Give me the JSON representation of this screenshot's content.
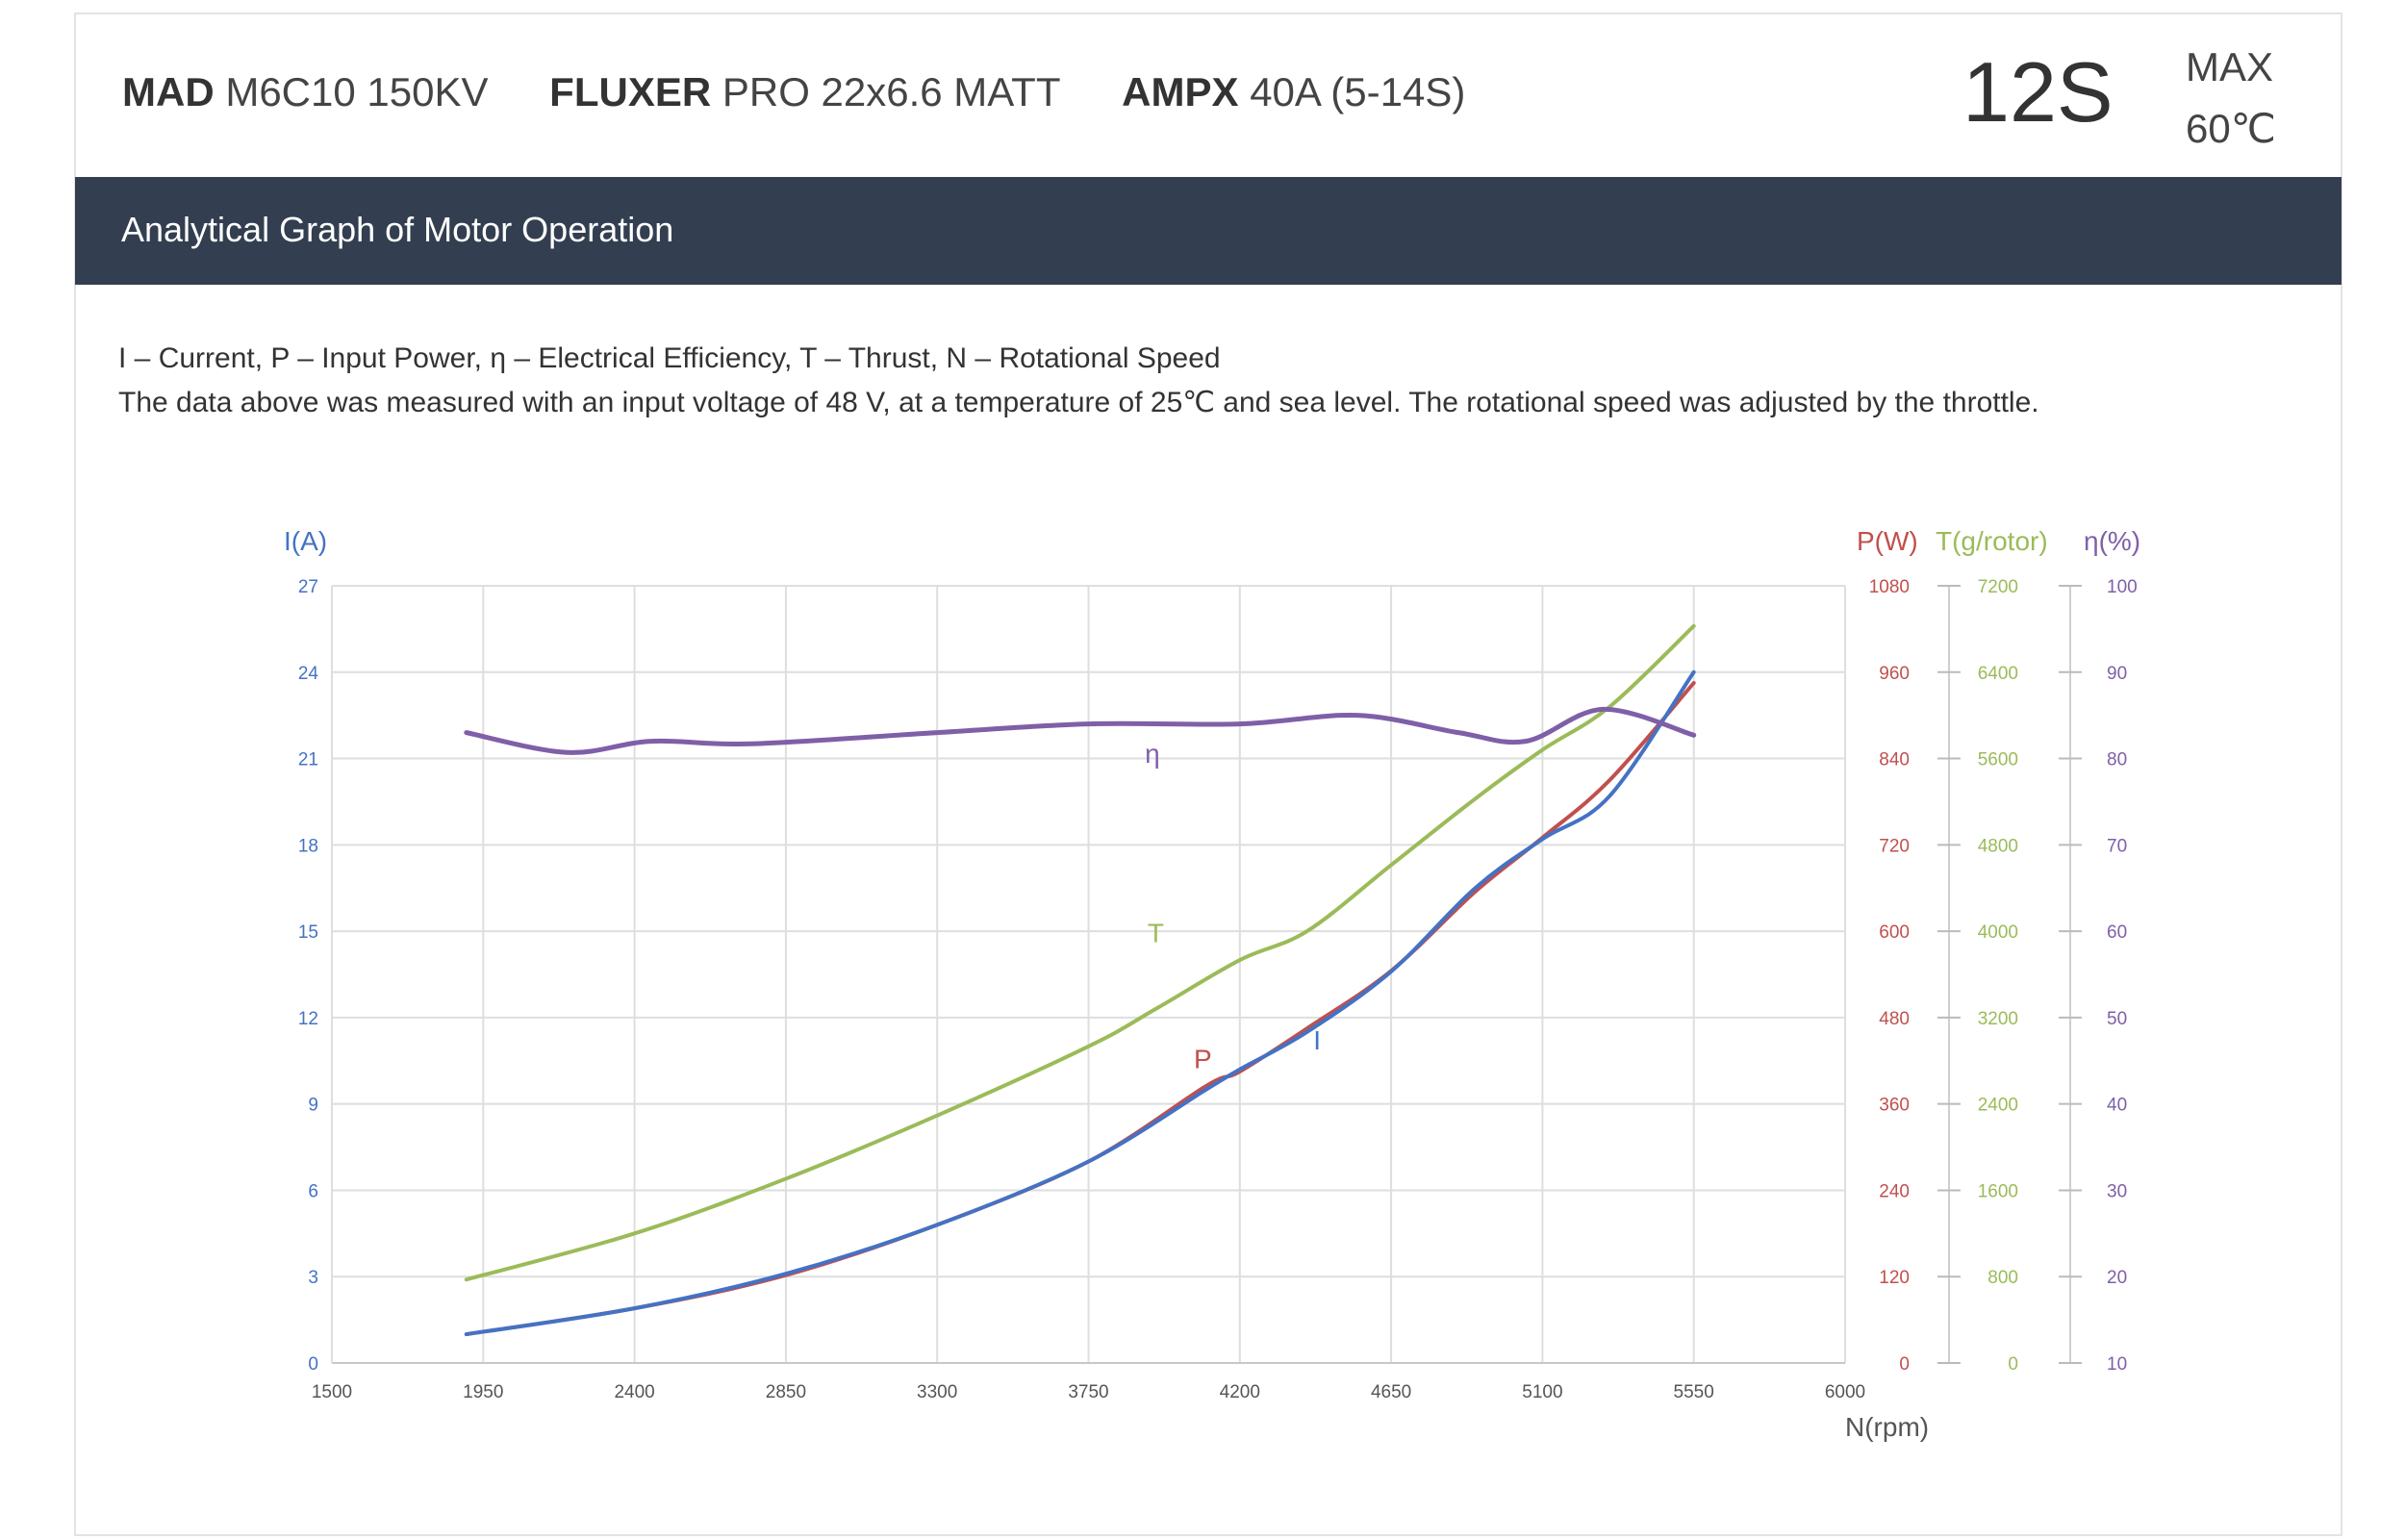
{
  "header": {
    "motor": {
      "brand": "MAD",
      "model": "M6C10 150KV"
    },
    "propeller": {
      "brand": "FLUXER",
      "model": "PRO 22x6.6 MATT"
    },
    "esc": {
      "brand": "AMPX",
      "model": "40A (5-14S)"
    },
    "cells": "12S",
    "max_label": "MAX",
    "max_temp": "60℃"
  },
  "section_title": "Analytical Graph of Motor Operation",
  "legend_text": "I – Current, P – Input Power, η – Electrical Efficiency, T – Thrust,   N – Rotational Speed",
  "note_text": "The data above was measured with an input voltage of 48 V, at a temperature of 25℃ and sea level. The rotational speed was adjusted by the throttle.",
  "chart_data": {
    "type": "line",
    "xlabel": "N(rpm)",
    "xlim": [
      1500,
      6000
    ],
    "xticks": [
      "1500",
      "1950",
      "2400",
      "2850",
      "3300",
      "3750",
      "4200",
      "4650",
      "5100",
      "5550",
      "6000"
    ],
    "grid": true,
    "axes": [
      {
        "id": "I",
        "label": "I(A)",
        "side": "left",
        "range": [
          0,
          27
        ],
        "ticks": [
          "0",
          "3",
          "6",
          "9",
          "12",
          "15",
          "18",
          "21",
          "24",
          "27"
        ],
        "color": "#4472c4"
      },
      {
        "id": "P",
        "label": "P(W)",
        "side": "right",
        "range": [
          0,
          1080
        ],
        "ticks": [
          "0",
          "120",
          "240",
          "360",
          "480",
          "600",
          "720",
          "840",
          "960",
          "1080"
        ],
        "color": "#c0504d"
      },
      {
        "id": "T",
        "label": "T(g/rotor)",
        "side": "right",
        "range": [
          0,
          7200
        ],
        "ticks": [
          "0",
          "800",
          "1600",
          "2400",
          "3200",
          "4000",
          "4800",
          "5600",
          "6400",
          "7200"
        ],
        "color": "#9bbb59"
      },
      {
        "id": "eta",
        "label": "η(%)",
        "side": "right",
        "range": [
          10,
          100
        ],
        "ticks": [
          "10",
          "20",
          "30",
          "40",
          "50",
          "60",
          "70",
          "80",
          "90",
          "100"
        ],
        "color": "#7f5fa8"
      }
    ],
    "series": [
      {
        "name": "T",
        "axis": "T",
        "color": "#9bbb59",
        "label_at": [
          3950,
          3900
        ],
        "x": [
          1900,
          2400,
          2850,
          3300,
          3750,
          3950,
          4200,
          4400,
          4650,
          4900,
          5100,
          5300,
          5550
        ],
        "y": [
          773,
          1200,
          1707,
          2293,
          2933,
          3280,
          3733,
          4000,
          4613,
          5227,
          5680,
          6080,
          6827
        ]
      },
      {
        "name": "P",
        "axis": "P",
        "color": "#c0504d",
        "label_at": [
          4090,
          410
        ],
        "x": [
          1900,
          2400,
          2850,
          3300,
          3750,
          4100,
          4200,
          4400,
          4650,
          4900,
          5100,
          5300,
          5550
        ],
        "y": [
          40,
          76,
          122,
          192,
          280,
          385,
          405,
          465,
          545,
          655,
          730,
          810,
          945
        ]
      },
      {
        "name": "I",
        "axis": "I",
        "color": "#4472c4",
        "label_at": [
          4430,
          10.9
        ],
        "x": [
          1900,
          2400,
          2850,
          3300,
          3750,
          4100,
          4200,
          4400,
          4650,
          4900,
          5100,
          5300,
          5550
        ],
        "y": [
          1.0,
          1.9,
          3.1,
          4.8,
          7.0,
          9.5,
          10.2,
          11.5,
          13.6,
          16.5,
          18.2,
          19.7,
          24.0
        ]
      },
      {
        "name": "η",
        "axis": "eta",
        "color": "#7f5fa8",
        "label_at": [
          3940,
          79.5
        ],
        "x": [
          1900,
          2200,
          2450,
          2750,
          3300,
          3750,
          4200,
          4550,
          4850,
          5050,
          5280,
          5550
        ],
        "y": [
          83.0,
          80.7,
          82.0,
          81.7,
          83.0,
          84.0,
          84.0,
          85.0,
          83.0,
          82.0,
          85.7,
          82.7
        ]
      }
    ]
  }
}
